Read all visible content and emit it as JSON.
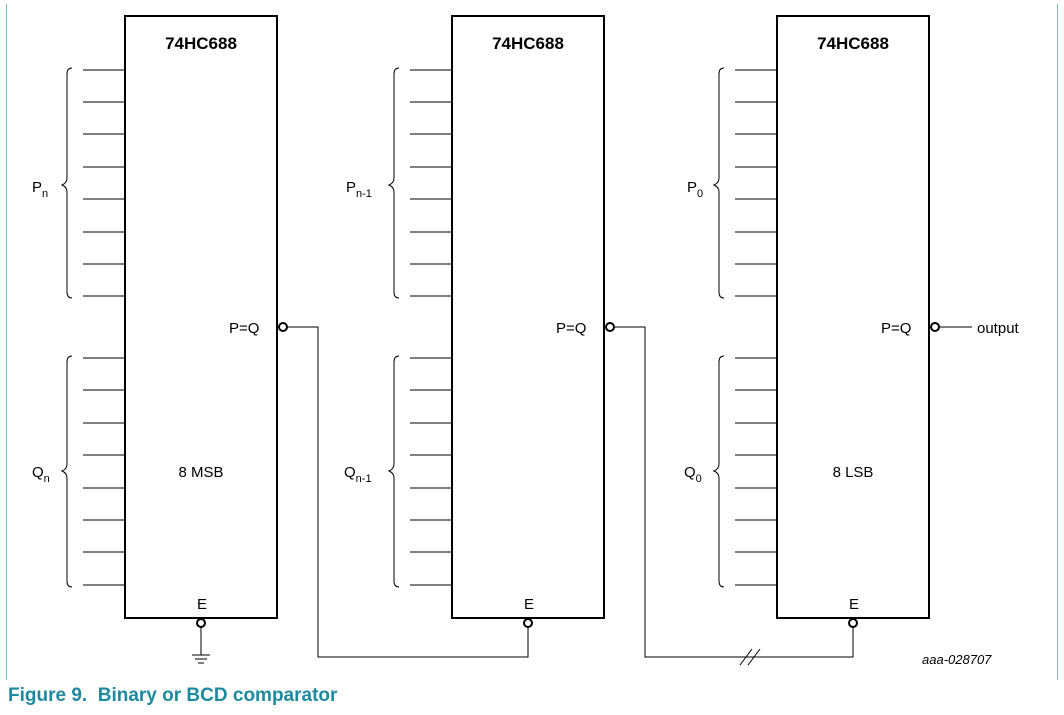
{
  "figure": {
    "caption": "Figure 9.  Binary or BCD comparator",
    "drawing_id": "aaa-028707"
  },
  "chips": [
    {
      "part": "74HC688",
      "p_group": {
        "base": "P",
        "sub": "n"
      },
      "q_group": {
        "base": "Q",
        "sub": "n"
      },
      "output_label": "P=Q",
      "inner_label": "8 MSB",
      "enable_label": "E"
    },
    {
      "part": "74HC688",
      "p_group": {
        "base": "P",
        "sub": "n-1"
      },
      "q_group": {
        "base": "Q",
        "sub": "n-1"
      },
      "output_label": "P=Q",
      "inner_label": "",
      "enable_label": "E"
    },
    {
      "part": "74HC688",
      "p_group": {
        "base": "P",
        "sub": "0"
      },
      "q_group": {
        "base": "Q",
        "sub": "0"
      },
      "output_label": "P=Q",
      "inner_label": "8 LSB",
      "enable_label": "E"
    }
  ],
  "output_text": "output"
}
